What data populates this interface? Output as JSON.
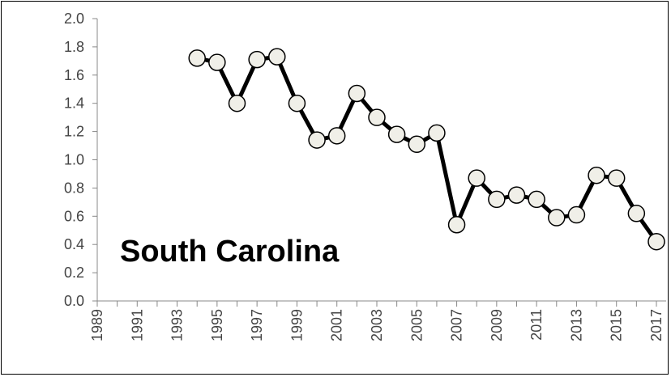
{
  "chart_data": {
    "type": "line",
    "annotation": "South Carolina",
    "title": "",
    "xlabel": "",
    "ylabel": "",
    "xlim": [
      1989,
      2017
    ],
    "ylim": [
      0.0,
      2.0
    ],
    "x_tick_labels": [
      "1989",
      "1991",
      "1993",
      "1995",
      "1997",
      "1999",
      "2001",
      "2003",
      "2005",
      "2007",
      "2009",
      "2011",
      "2013",
      "2015",
      "2017"
    ],
    "y_tick_labels": [
      "0.0",
      "0.2",
      "0.4",
      "0.6",
      "0.8",
      "1.0",
      "1.2",
      "1.4",
      "1.6",
      "1.8",
      "2.0"
    ],
    "grid": false,
    "legend": "none",
    "line_color": "#000000",
    "marker_fill": "#f0efe8",
    "series": [
      {
        "x": [
          1994,
          1995,
          1996,
          1997,
          1998,
          1999,
          2000,
          2001,
          2002,
          2003,
          2004,
          2005,
          2006,
          2007,
          2008,
          2009,
          2010,
          2011,
          2012,
          2013,
          2014,
          2015,
          2016,
          2017
        ],
        "values": [
          1.72,
          1.69,
          1.4,
          1.71,
          1.73,
          1.4,
          1.14,
          1.17,
          1.47,
          1.3,
          1.18,
          1.11,
          1.19,
          0.54,
          0.87,
          0.72,
          0.75,
          0.72,
          0.59,
          0.61,
          0.89,
          0.87,
          0.62,
          0.42
        ]
      }
    ]
  }
}
